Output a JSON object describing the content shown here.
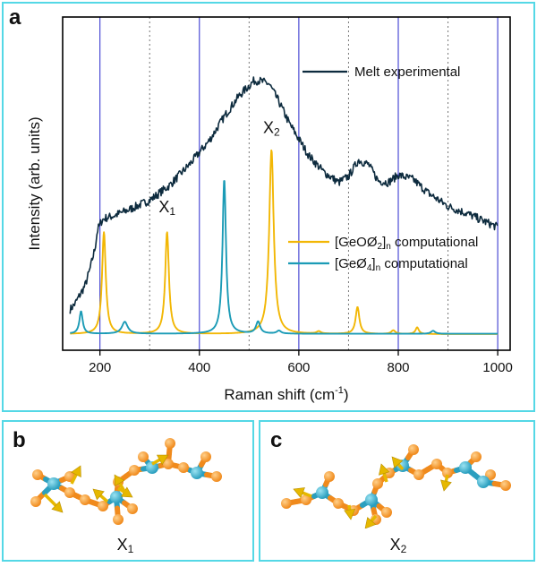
{
  "panels": {
    "a": {
      "letter": "a"
    },
    "b": {
      "letter": "b",
      "caption_main": "X",
      "caption_sub": "1"
    },
    "c": {
      "letter": "c",
      "caption_main": "X",
      "caption_sub": "2"
    }
  },
  "colors": {
    "experimental": "#0d2b3e",
    "geo2": "#f2b705",
    "geo4": "#1b9bb6",
    "gridline_solid": "#3b3bd1",
    "gridline_dotted": "#777777",
    "frame": "#54d8e6",
    "atom_ge": "#2b9fbf",
    "atom_o": "#f08a1c",
    "arrow": "#e6b800"
  },
  "icons": {
    "structure_b": "atomic-chain-structure",
    "structure_c": "atomic-chain-structure"
  },
  "chart_data": {
    "type": "line",
    "xlabel": "Raman shift (cm",
    "xlabel_sup": "-1",
    "xlabel_end": ")",
    "ylabel": "Intensity (arb. units)",
    "xlim": [
      125,
      1025
    ],
    "ylim": [
      0,
      1
    ],
    "xticks": [
      "200",
      "400",
      "600",
      "800",
      "1000"
    ],
    "tick_values": [
      200,
      400,
      600,
      800,
      1000
    ],
    "grid_solid": [
      200,
      400,
      600,
      800,
      1000
    ],
    "grid_dotted": [
      300,
      500,
      700,
      900
    ],
    "annotations": [
      {
        "main": "X",
        "sub": "1",
        "x": 335,
        "y": 0.41
      },
      {
        "main": "X",
        "sub": "2",
        "x": 545,
        "y": 0.675
      }
    ],
    "legend_top": {
      "text": "Melt experimental",
      "placement": "top-right"
    },
    "legend_bottom": [
      {
        "pre": "[GeOØ",
        "sub1": "2",
        "post": "]",
        "sub2": "n",
        "tail": " computational",
        "key": "geo2"
      },
      {
        "pre": "[GeØ",
        "sub1": "4",
        "post": "]",
        "sub2": "n",
        "tail": " computational",
        "key": "geo4"
      }
    ],
    "series": [
      {
        "name": "Melt experimental",
        "key": "experimental",
        "style": "noisy",
        "x": [
          140,
          150,
          160,
          170,
          180,
          190,
          195,
          200,
          205,
          210,
          230,
          260,
          300,
          340,
          380,
          420,
          450,
          480,
          510,
          520,
          540,
          560,
          580,
          600,
          620,
          650,
          680,
          700,
          720,
          740,
          760,
          780,
          800,
          830,
          860,
          900,
          940,
          980,
          1000
        ],
        "y": [
          0.085,
          0.105,
          0.135,
          0.165,
          0.22,
          0.29,
          0.35,
          0.37,
          0.385,
          0.39,
          0.4,
          0.42,
          0.45,
          0.5,
          0.57,
          0.65,
          0.73,
          0.8,
          0.85,
          0.85,
          0.84,
          0.78,
          0.71,
          0.655,
          0.6,
          0.545,
          0.51,
          0.53,
          0.585,
          0.57,
          0.515,
          0.51,
          0.535,
          0.52,
          0.475,
          0.43,
          0.405,
          0.375,
          0.36
        ]
      },
      {
        "name": "[GeOØ2]n computational",
        "key": "geo2",
        "style": "peaks",
        "baseline": 0.003,
        "peaks": [
          {
            "x": 208,
            "h": 0.34,
            "w": 4.5
          },
          {
            "x": 335,
            "h": 0.34,
            "w": 4.5
          },
          {
            "x": 545,
            "h": 0.615,
            "w": 5.5
          },
          {
            "x": 718,
            "h": 0.09,
            "w": 4.5
          },
          {
            "x": 640,
            "h": 0.008,
            "w": 5
          },
          {
            "x": 790,
            "h": 0.012,
            "w": 5
          },
          {
            "x": 838,
            "h": 0.022,
            "w": 4
          }
        ]
      },
      {
        "name": "[GeØ4]n computational",
        "key": "geo4",
        "style": "peaks",
        "baseline": 0.004,
        "peaks": [
          {
            "x": 162,
            "h": 0.075,
            "w": 4
          },
          {
            "x": 250,
            "h": 0.04,
            "w": 7
          },
          {
            "x": 450,
            "h": 0.515,
            "w": 4.2
          },
          {
            "x": 518,
            "h": 0.04,
            "w": 5
          },
          {
            "x": 560,
            "h": 0.01,
            "w": 5
          },
          {
            "x": 870,
            "h": 0.01,
            "w": 5
          }
        ]
      }
    ]
  }
}
